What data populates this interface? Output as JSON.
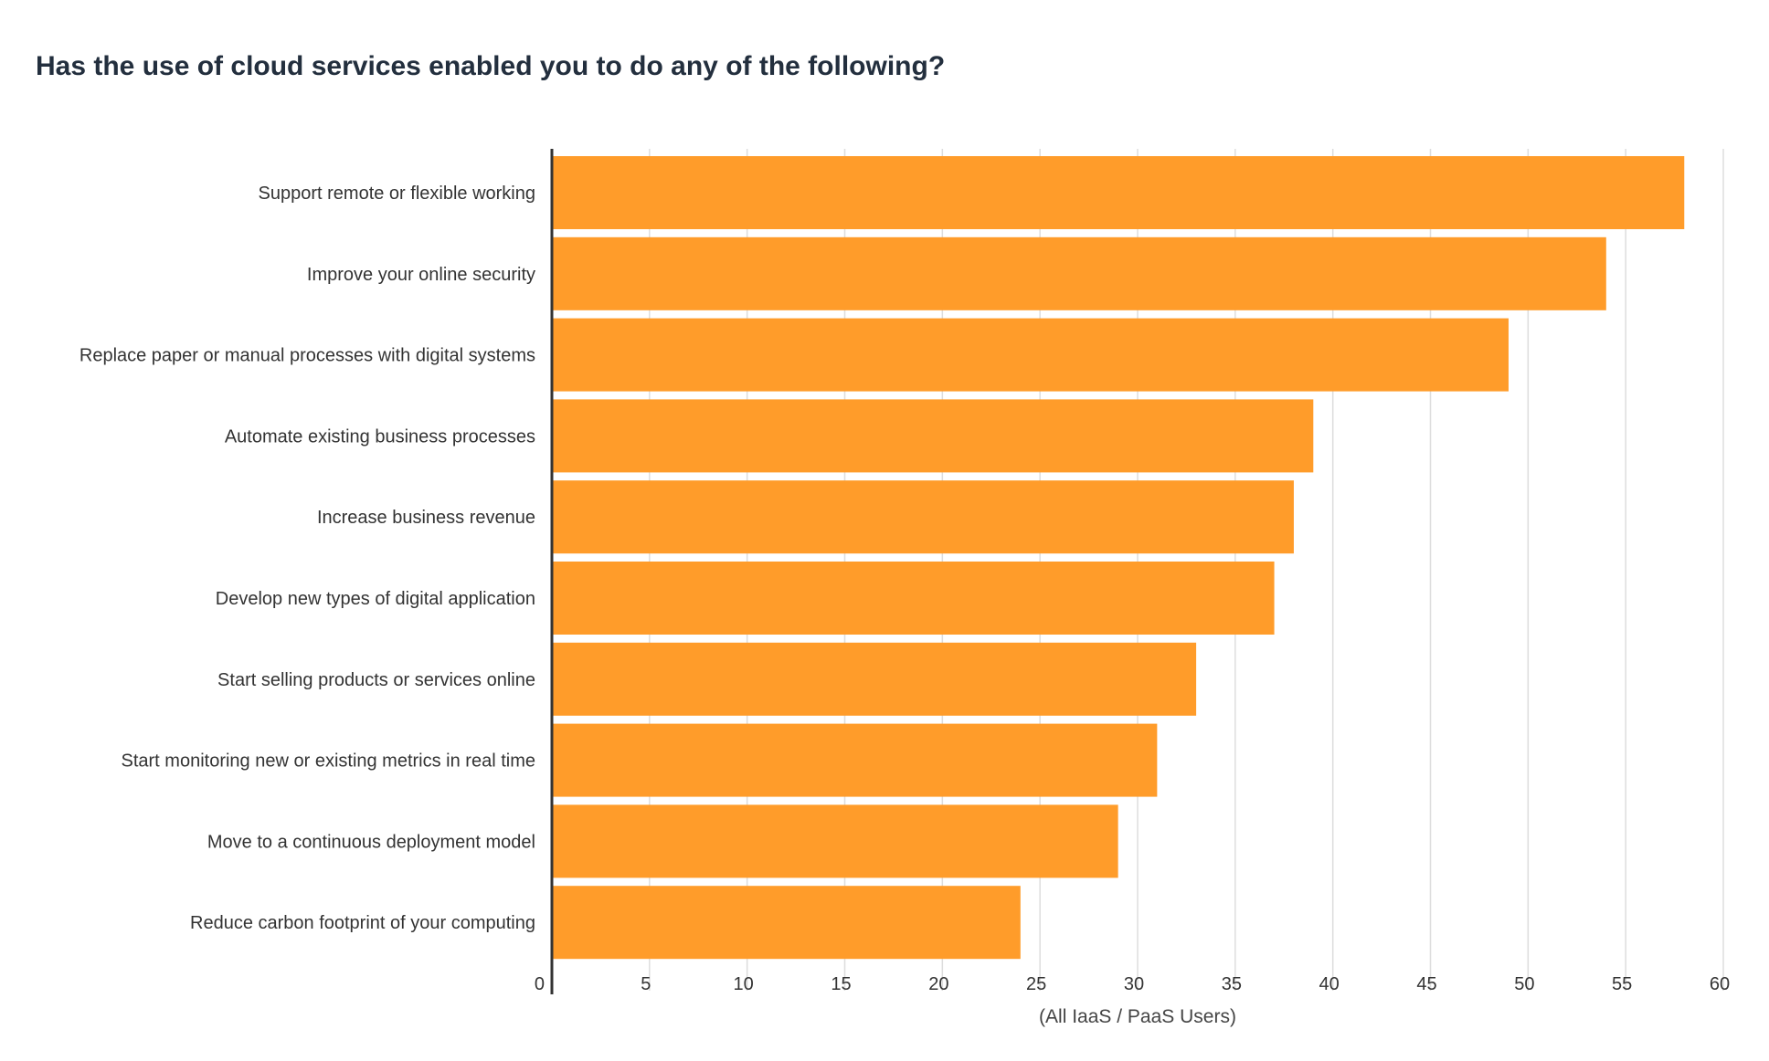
{
  "chart_data": {
    "type": "bar",
    "orientation": "horizontal",
    "title": "Has the use of cloud services enabled you to do any of the following?",
    "xlabel": "(All IaaS / PaaS Users)",
    "ylabel": "",
    "categories": [
      "Support remote or flexible working",
      "Improve your online security",
      "Replace paper or manual processes with digital systems",
      "Automate existing business processes",
      "Increase business revenue",
      "Develop new types of digital application",
      "Start selling products or services online",
      "Start monitoring new or existing metrics in real time",
      "Move to a continuous deployment model",
      "Reduce carbon footprint of your computing"
    ],
    "values": [
      58,
      54,
      49,
      39,
      38,
      37,
      33,
      31,
      29,
      24
    ],
    "xlim": [
      0,
      60
    ],
    "xticks": [
      "0",
      "5",
      "10",
      "15",
      "20",
      "25",
      "30",
      "35",
      "40",
      "45",
      "50",
      "55",
      "60"
    ],
    "grid": true,
    "legend": "none",
    "bar_color": "#ff9c2a",
    "grid_color": "#dddddd",
    "axis_color": "#333333"
  }
}
